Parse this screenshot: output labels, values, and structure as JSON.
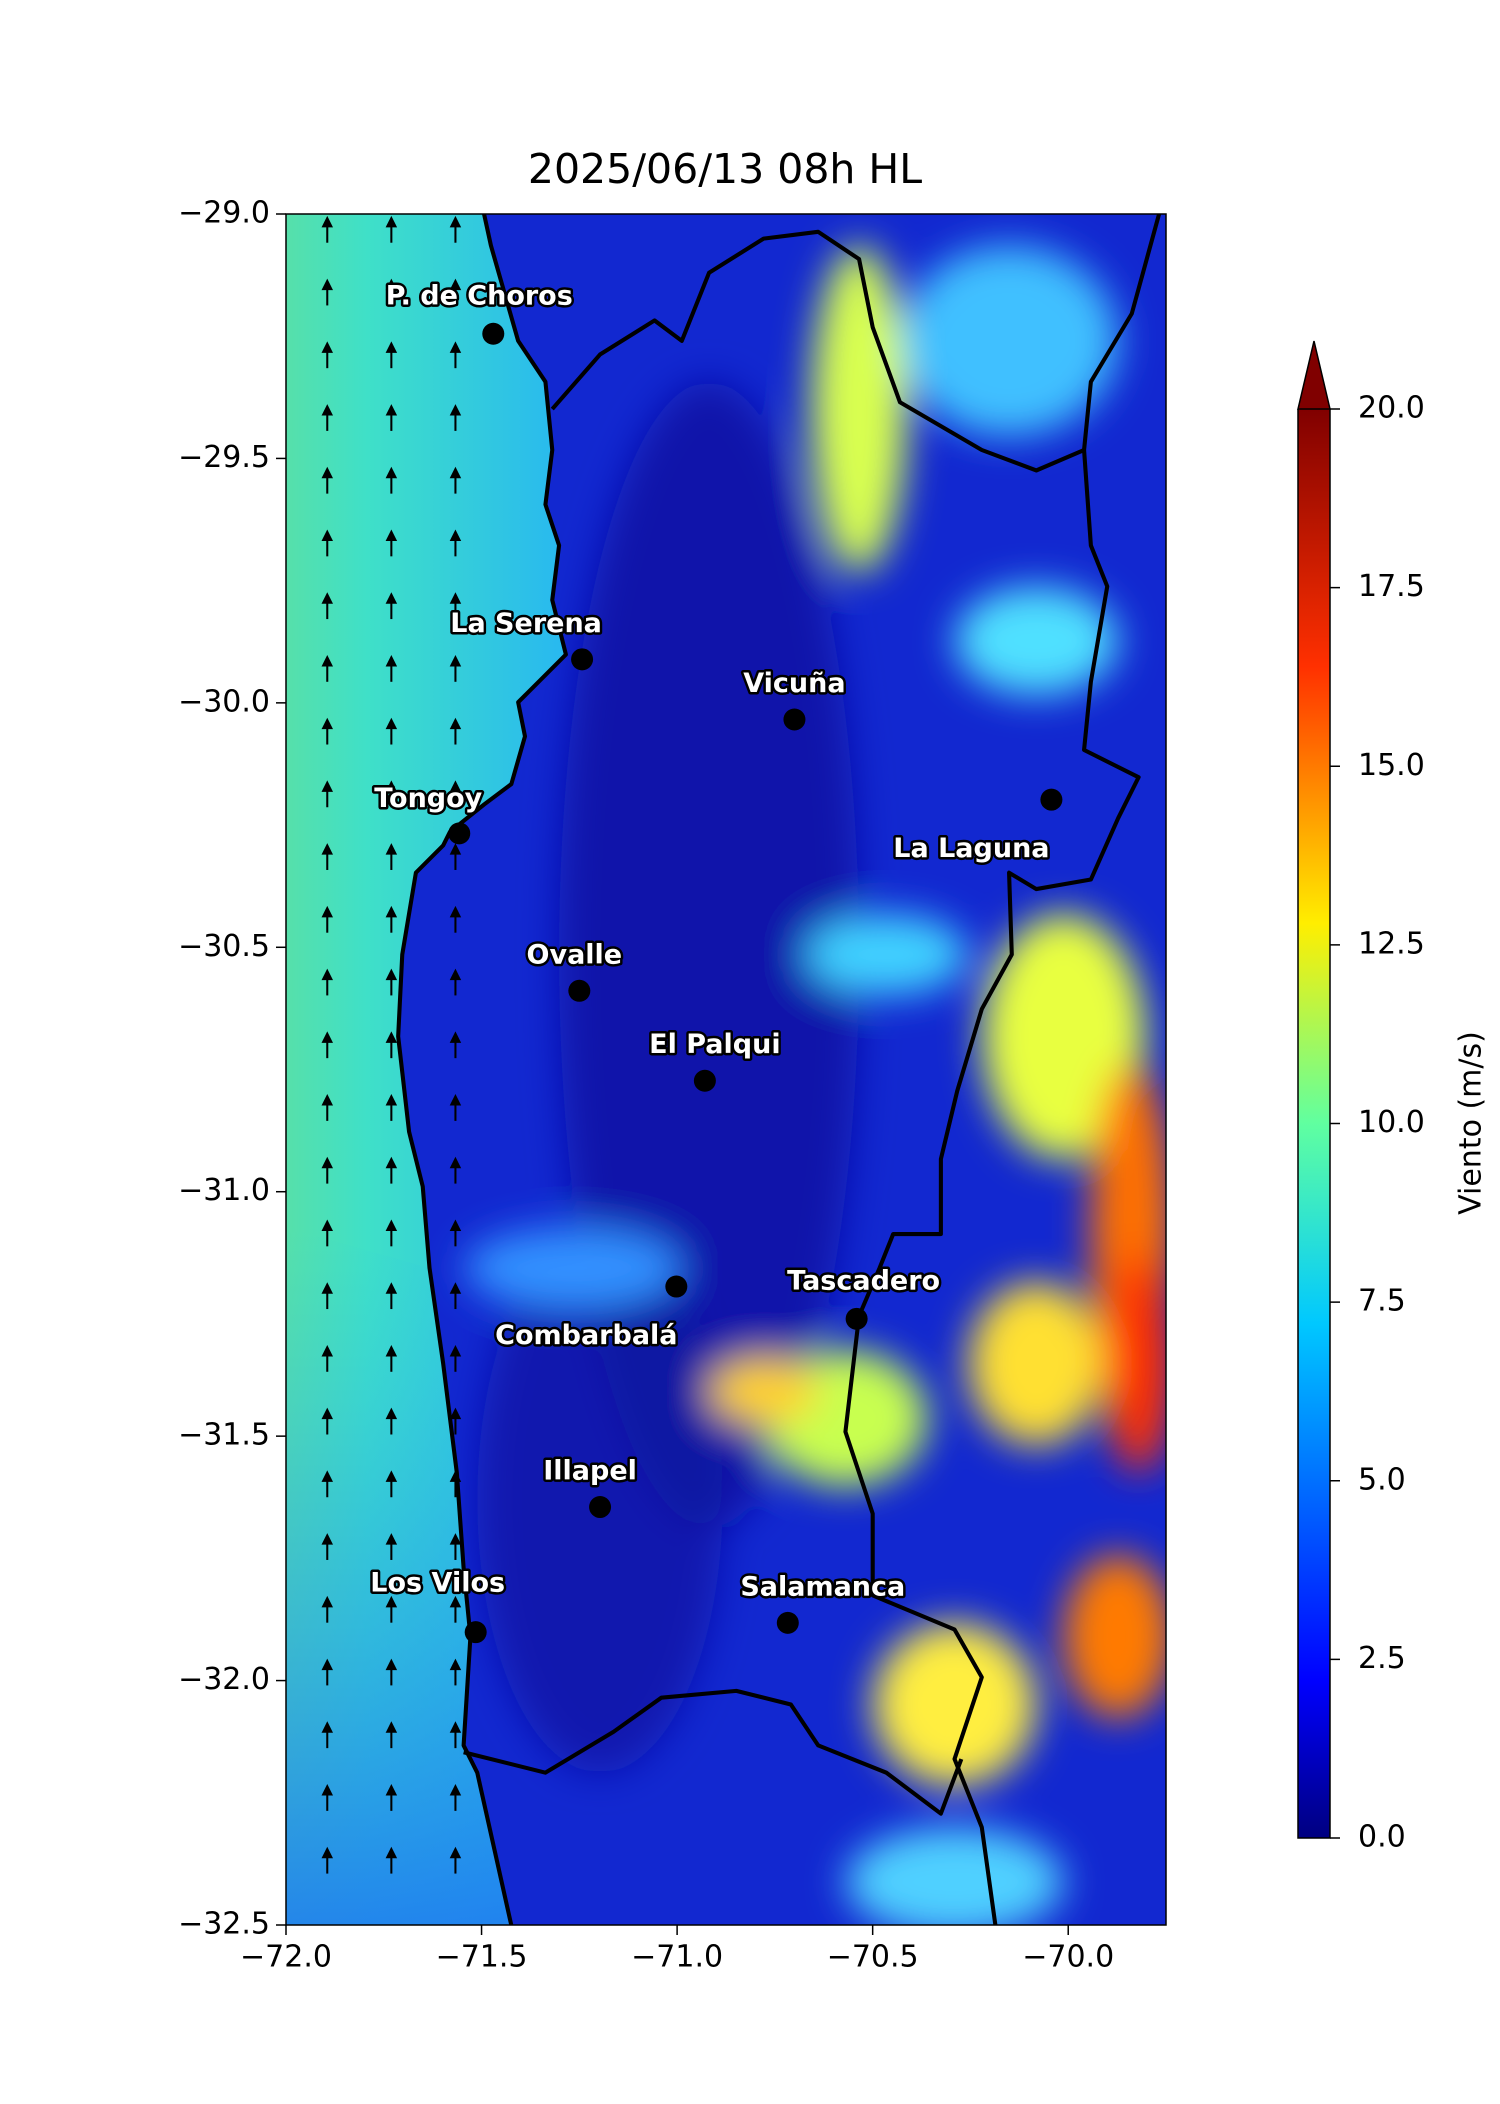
{
  "chart_data": {
    "type": "map",
    "title": "2025/06/13 08h HL",
    "xlim": [
      -72.0,
      -69.75
    ],
    "ylim": [
      -32.5,
      -29.0
    ],
    "xticks": [
      {
        "value": -72.0,
        "label": "−72.0"
      },
      {
        "value": -71.5,
        "label": "−71.5"
      },
      {
        "value": -71.0,
        "label": "−71.0"
      },
      {
        "value": -70.5,
        "label": "−70.5"
      },
      {
        "value": -70.0,
        "label": "−70.0"
      }
    ],
    "yticks": [
      {
        "value": -29.0,
        "label": "−29.0"
      },
      {
        "value": -29.5,
        "label": "−29.5"
      },
      {
        "value": -30.0,
        "label": "−30.0"
      },
      {
        "value": -30.5,
        "label": "−30.5"
      },
      {
        "value": -31.0,
        "label": "−31.0"
      },
      {
        "value": -31.5,
        "label": "−31.5"
      },
      {
        "value": -32.0,
        "label": "−32.0"
      },
      {
        "value": -32.5,
        "label": "−32.5"
      }
    ],
    "colorbar": {
      "label": "Viento (m/s)",
      "clim": [
        0,
        20
      ],
      "ticks": [
        {
          "value": 0,
          "label": "0.0"
        },
        {
          "value": 2.5,
          "label": "2.5"
        },
        {
          "value": 5,
          "label": "5.0"
        },
        {
          "value": 7.5,
          "label": "7.5"
        },
        {
          "value": 10,
          "label": "10.0"
        },
        {
          "value": 12.5,
          "label": "12.5"
        },
        {
          "value": 15,
          "label": "15.0"
        },
        {
          "value": 17.5,
          "label": "17.5"
        },
        {
          "value": 20,
          "label": "20.0"
        }
      ]
    },
    "cities": [
      {
        "name": "P. de Choros",
        "lon": -71.47,
        "lat": -29.245
      },
      {
        "name": "La Serena",
        "lon": -71.243,
        "lat": -29.911
      },
      {
        "name": "Vicuña",
        "lon": -70.7,
        "lat": -30.034
      },
      {
        "name": "La Laguna",
        "lon": -70.043,
        "lat": -30.198
      },
      {
        "name": "Tongoy",
        "lon": -71.557,
        "lat": -30.267
      },
      {
        "name": "Ovalle",
        "lon": -71.25,
        "lat": -30.589
      },
      {
        "name": "El Palqui",
        "lon": -70.929,
        "lat": -30.773
      },
      {
        "name": "Combarbalá",
        "lon": -71.002,
        "lat": -31.194
      },
      {
        "name": "Tascadero",
        "lon": -70.541,
        "lat": -31.26
      },
      {
        "name": "Illapel",
        "lon": -71.197,
        "lat": -31.645
      },
      {
        "name": "Los Vilos",
        "lon": -71.515,
        "lat": -31.901
      },
      {
        "name": "Salamanca",
        "lon": -70.717,
        "lat": -31.882
      }
    ]
  }
}
